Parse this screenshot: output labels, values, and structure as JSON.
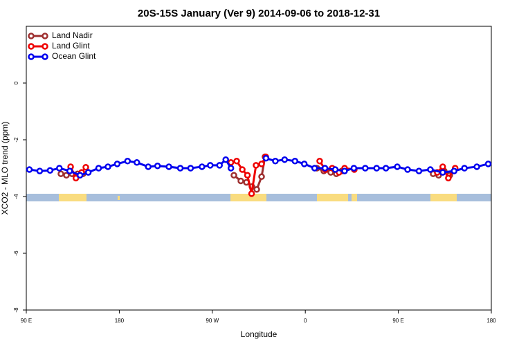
{
  "chart_data": {
    "type": "line",
    "title": "20S-15S January (Ver 9)   2014-09-06 to 2018-12-31",
    "x_label": "Longitude",
    "y_label": "XCO2 - MLO trend (ppm)",
    "xlim": [
      90,
      540
    ],
    "xticks": [
      {
        "value": 90,
        "label": "90 E"
      },
      180,
      {
        "value": 270,
        "label": "90 W"
      },
      {
        "value": 360,
        "label": "0"
      },
      {
        "value": 450,
        "label": "90 E"
      },
      {
        "value": 540,
        "label": "180"
      }
    ],
    "ylim": [
      -8,
      2
    ],
    "yticks": [
      -8,
      -6,
      -4,
      -2,
      0
    ],
    "legend": "top-left",
    "series": [
      {
        "name": "Land Nadir",
        "color": "#9e2f2f",
        "x": [
          123.5,
          128.8,
          134.2,
          139.6,
          144.9,
          290.9,
          297.6,
          303,
          308.3,
          313,
          317.7,
          321,
          371.2,
          377.9,
          384.6,
          390,
          395.3,
          483.7,
          489,
          494.4,
          499.8
        ],
        "values": [
          -3.2,
          -3.25,
          -3.2,
          -3.2,
          -3.2,
          -3.25,
          -3.45,
          -3.5,
          -3.65,
          -3.75,
          -3.3,
          -2.6,
          -3.0,
          -3.1,
          -3.15,
          -3.2,
          -3.1,
          -3.2,
          -3.25,
          -3.1,
          -3.25
        ]
      },
      {
        "name": "Land Glint",
        "color": "#ee0000",
        "x": [
          132.9,
          138,
          143.6,
          147.6,
          288,
          293.6,
          299,
          304,
          308,
          312.3,
          317.7,
          321.7,
          373.9,
          379.3,
          386,
          392.6,
          398,
          407.4,
          487.7,
          493,
          498.4,
          505
        ],
        "values": [
          -2.95,
          -3.35,
          -3.15,
          -2.97,
          -2.8,
          -2.75,
          -3.05,
          -3.25,
          -3.9,
          -2.9,
          -2.85,
          -2.6,
          -2.75,
          -3.05,
          -3.0,
          -3.15,
          -3.0,
          -3.05,
          -3.15,
          -2.95,
          -3.35,
          -3.0
        ]
      },
      {
        "name": "Ocean Glint",
        "color": "#0000ee",
        "x": [
          93,
          103,
          113,
          122,
          132,
          142,
          150,
          160,
          169,
          178,
          188,
          197,
          208,
          217,
          228,
          239,
          249,
          260,
          268,
          277,
          283,
          288,
          322,
          331,
          340,
          350,
          359,
          369,
          379,
          389,
          398,
          407,
          418,
          429,
          438,
          449,
          459,
          470,
          481,
          493,
          504,
          514,
          526,
          537
        ],
        "values": [
          -3.05,
          -3.1,
          -3.08,
          -3.0,
          -3.1,
          -3.25,
          -3.15,
          -3.0,
          -2.95,
          -2.85,
          -2.75,
          -2.8,
          -2.95,
          -2.92,
          -2.95,
          -3.0,
          -3.0,
          -2.95,
          -2.9,
          -2.9,
          -2.7,
          -3.0,
          -2.65,
          -2.75,
          -2.7,
          -2.75,
          -2.85,
          -3.0,
          -3.0,
          -3.05,
          -3.1,
          -3.0,
          -3.0,
          -3.0,
          -3.0,
          -2.95,
          -3.05,
          -3.1,
          -3.05,
          -3.15,
          -3.1,
          -3.0,
          -2.95,
          -2.85
        ]
      }
    ]
  }
}
